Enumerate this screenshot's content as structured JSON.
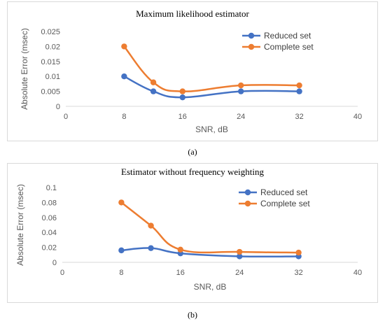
{
  "chart_data": [
    {
      "type": "line",
      "title": "Maximum likelihood estimator",
      "xlabel": "SNR, dB",
      "ylabel": "Absolute Error (msec)",
      "xlim": [
        0,
        40
      ],
      "ylim": [
        0,
        0.025
      ],
      "xticks": [
        "0",
        "8",
        "16",
        "24",
        "32",
        "40"
      ],
      "yticks": [
        "0",
        "0.005",
        "0.01",
        "0.015",
        "0.02",
        "0.025"
      ],
      "grid": false,
      "legend": "top-right",
      "x": [
        8,
        12,
        16,
        24,
        32
      ],
      "series": [
        {
          "name": "Reduced set",
          "color": "#4472C4",
          "values": [
            0.01,
            0.005,
            0.003,
            0.005,
            0.005
          ]
        },
        {
          "name": "Complete set",
          "color": "#ED7D31",
          "values": [
            0.02,
            0.008,
            0.005,
            0.007,
            0.007
          ]
        }
      ],
      "caption": "(a)"
    },
    {
      "type": "line",
      "title": "Estimator without frequency weighting",
      "xlabel": "SNR, dB",
      "ylabel": "Absolute Error (msec)",
      "xlim": [
        0,
        40
      ],
      "ylim": [
        0,
        0.1
      ],
      "xticks": [
        "0",
        "8",
        "16",
        "24",
        "32",
        "40"
      ],
      "yticks": [
        "0",
        "0.02",
        "0.04",
        "0.06",
        "0.08",
        "0.1"
      ],
      "grid": false,
      "legend": "top-right",
      "x": [
        8,
        12,
        16,
        24,
        32
      ],
      "series": [
        {
          "name": "Reduced set",
          "color": "#4472C4",
          "values": [
            0.016,
            0.019,
            0.012,
            0.008,
            0.008
          ]
        },
        {
          "name": "Complete set",
          "color": "#ED7D31",
          "values": [
            0.08,
            0.049,
            0.017,
            0.014,
            0.013
          ]
        }
      ],
      "caption": "(b)"
    }
  ]
}
